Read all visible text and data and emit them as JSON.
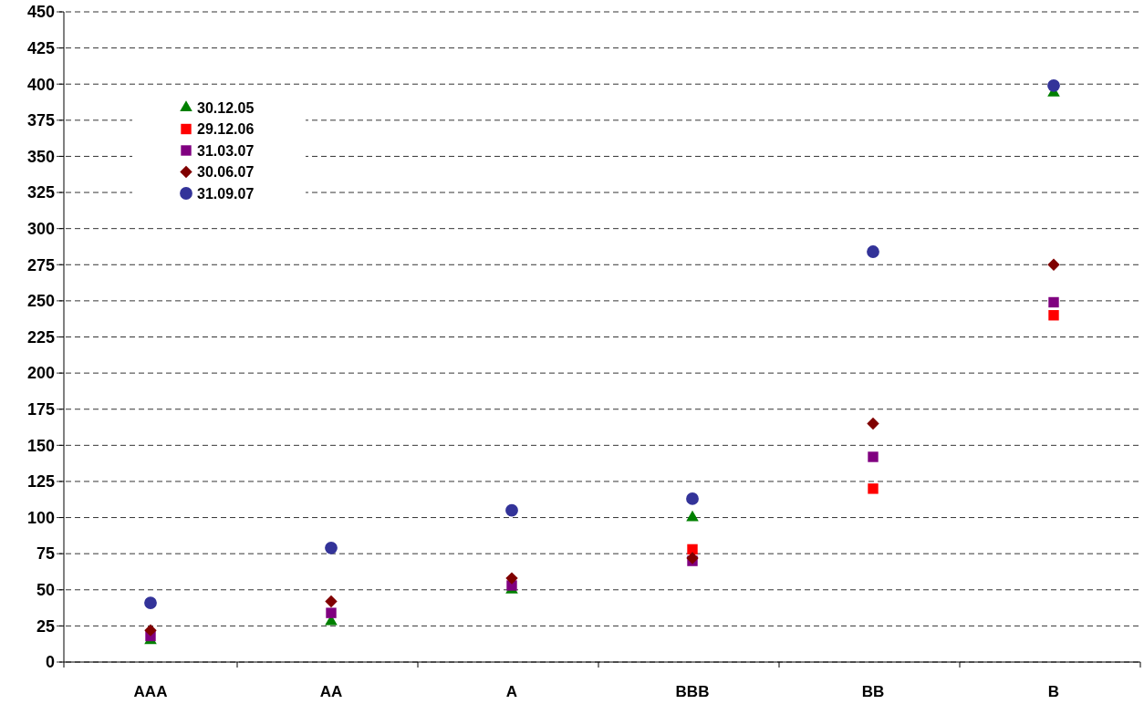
{
  "chart_data": {
    "type": "scatter",
    "categories": [
      "AAA",
      "AA",
      "A",
      "BBB",
      "BB",
      "B"
    ],
    "series": [
      {
        "name": "30.12.05",
        "color": "#008000",
        "marker": "triangle",
        "values": [
          15,
          28,
          50,
          100,
          null,
          394
        ]
      },
      {
        "name": "29.12.06",
        "color": "#ff0000",
        "marker": "square",
        "values": [
          null,
          null,
          null,
          78,
          120,
          240
        ]
      },
      {
        "name": "31.03.07",
        "color": "#800080",
        "marker": "square",
        "values": [
          18,
          34,
          53,
          70,
          142,
          249
        ]
      },
      {
        "name": "30.06.07",
        "color": "#800000",
        "marker": "diamond",
        "values": [
          22,
          42,
          58,
          72,
          165,
          275
        ]
      },
      {
        "name": "31.09.07",
        "color": "#333399",
        "marker": "circle",
        "values": [
          41,
          79,
          105,
          113,
          284,
          399
        ]
      }
    ],
    "ylim": [
      0,
      450
    ],
    "yticks": [
      0,
      25,
      50,
      75,
      100,
      125,
      150,
      175,
      200,
      225,
      250,
      275,
      300,
      325,
      350,
      375,
      400,
      425,
      450
    ],
    "grid": "y",
    "legend": "top left"
  }
}
